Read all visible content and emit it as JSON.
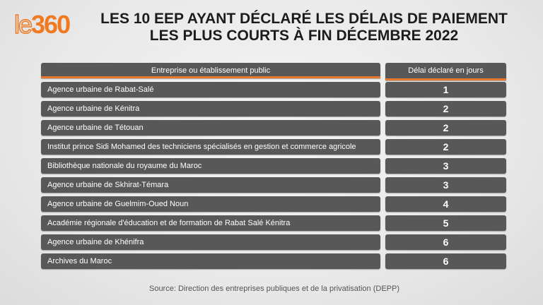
{
  "logo": "le360",
  "title": [
    "LES 10 EEP AYANT DÉCLARÉ LES DÉLAIS DE PAIEMENT",
    "LES PLUS COURTS À FIN DÉCEMBRE 2022"
  ],
  "headers": [
    "Entreprise ou établissement public",
    "Délai déclaré en jours"
  ],
  "rows": [
    {
      "name": "Agence urbaine de Rabat-Salé",
      "days": "1"
    },
    {
      "name": "Agence urbaine de Kénitra",
      "days": "2"
    },
    {
      "name": "Agence urbaine de Tétouan",
      "days": "2"
    },
    {
      "name": "Institut prince Sidi Mohamed des techniciens spécialisés en gestion et commerce agricole",
      "days": "2"
    },
    {
      "name": "Bibliothèque nationale du royaume du Maroc",
      "days": "3"
    },
    {
      "name": "Agence urbaine de Skhirat-Témara",
      "days": "3"
    },
    {
      "name": "Agence urbaine de Guelmim-Oued Noun",
      "days": "4"
    },
    {
      "name": "Académie régionale d'éducation et de formation de Rabat Salé Kénitra",
      "days": "5"
    },
    {
      "name": "Agence urbaine de Khénifra",
      "days": "6"
    },
    {
      "name": "Archives du Maroc",
      "days": "6"
    }
  ],
  "source": "Source: Direction des entreprises publiques et de la privatisation (DEPP)",
  "colors": {
    "accent": "#f07a22",
    "cell": "#585858"
  }
}
